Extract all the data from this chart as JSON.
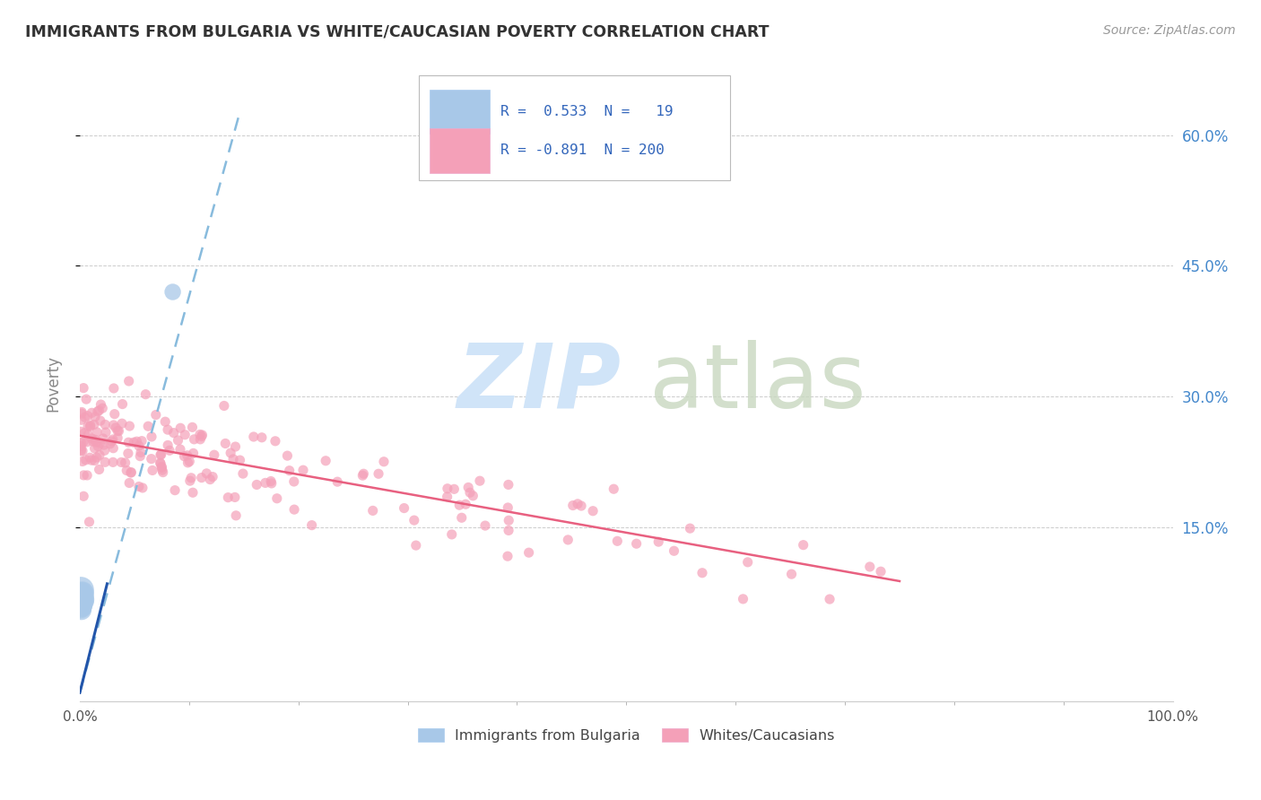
{
  "title": "IMMIGRANTS FROM BULGARIA VS WHITE/CAUCASIAN POVERTY CORRELATION CHART",
  "source": "Source: ZipAtlas.com",
  "ylabel": "Poverty",
  "xlim": [
    0,
    1.0
  ],
  "ylim": [
    -0.05,
    0.68
  ],
  "yticks": [
    0.15,
    0.3,
    0.45,
    0.6
  ],
  "ytick_labels": [
    "15.0%",
    "30.0%",
    "45.0%",
    "60.0%"
  ],
  "legend_r_blue": "0.533",
  "legend_n_blue": "19",
  "legend_r_pink": "-0.891",
  "legend_n_pink": "200",
  "legend_label_blue": "Immigrants from Bulgaria",
  "legend_label_pink": "Whites/Caucasians",
  "blue_color": "#a8c8e8",
  "pink_color": "#f4a0b8",
  "blue_line_color": "#4488cc",
  "pink_line_color": "#e86080",
  "background_color": "#ffffff",
  "grid_color": "#cccccc",
  "title_color": "#333333",
  "axis_label_color": "#888888",
  "legend_text_color": "#3366bb",
  "blue_scatter_x": [
    0.0008,
    0.0009,
    0.001,
    0.001,
    0.0012,
    0.0013,
    0.0015,
    0.0015,
    0.0016,
    0.0018,
    0.002,
    0.002,
    0.002,
    0.0022,
    0.0025,
    0.003,
    0.003,
    0.004,
    0.085
  ],
  "blue_scatter_y": [
    0.065,
    0.072,
    0.058,
    0.078,
    0.062,
    0.068,
    0.055,
    0.073,
    0.061,
    0.066,
    0.058,
    0.063,
    0.069,
    0.074,
    0.06,
    0.065,
    0.07,
    0.067,
    0.42
  ],
  "blue_scatter_s": [
    180,
    160,
    140,
    200,
    130,
    150,
    120,
    170,
    135,
    145,
    110,
    125,
    155,
    165,
    115,
    140,
    130,
    120,
    80
  ],
  "pink_trend_x": [
    0.0,
    0.75
  ],
  "pink_trend_y": [
    0.255,
    0.088
  ],
  "blue_trend_x": [
    0.0,
    0.145
  ],
  "blue_trend_y": [
    -0.04,
    0.62
  ],
  "watermark_zip_color": "#d0e4f8",
  "watermark_atlas_color": "#c8d8c0"
}
